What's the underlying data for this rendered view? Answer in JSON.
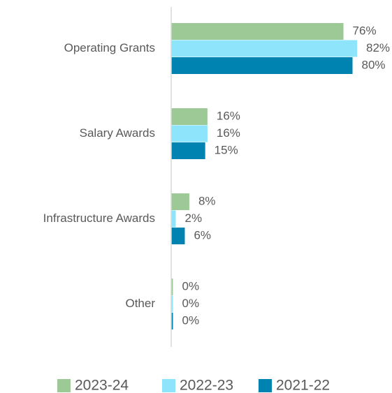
{
  "chart_data": {
    "type": "bar",
    "orientation": "horizontal",
    "categories": [
      "Operating Grants",
      "Salary Awards",
      "Infrastructure Awards",
      "Other"
    ],
    "series": [
      {
        "name": "2023-24",
        "color": "#9dc997",
        "values": [
          76,
          16,
          8,
          0
        ],
        "value_labels": [
          "76%",
          "16%",
          "8%",
          "0%"
        ]
      },
      {
        "name": "2022-23",
        "color": "#8ee4fb",
        "values": [
          82,
          16,
          2,
          0
        ],
        "value_labels": [
          "82%",
          "16%",
          "2%",
          "0%"
        ]
      },
      {
        "name": "2021-22",
        "color": "#0083b0",
        "values": [
          80,
          15,
          6,
          0
        ],
        "value_labels": [
          "80%",
          "15%",
          "6%",
          "0%"
        ]
      }
    ],
    "legend": "bottom"
  }
}
